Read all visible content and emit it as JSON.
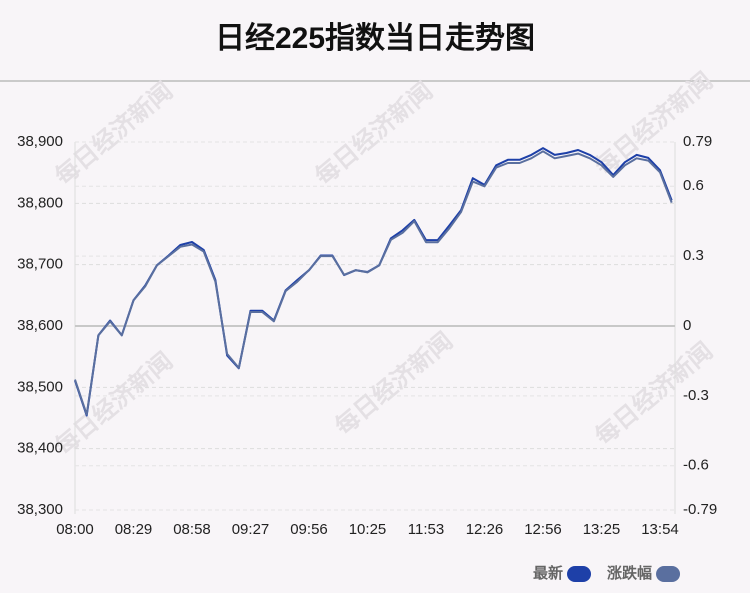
{
  "chart_data": {
    "type": "line",
    "title": "日经225指数当日走势图",
    "watermark": "每日经济新闻",
    "categories": [
      "08:00",
      null,
      null,
      null,
      null,
      "08:29",
      null,
      null,
      null,
      null,
      "08:58",
      null,
      null,
      null,
      null,
      "09:27",
      null,
      null,
      null,
      null,
      "09:56",
      null,
      null,
      null,
      null,
      "10:25",
      null,
      null,
      null,
      null,
      "11:53",
      null,
      null,
      null,
      null,
      "12:26",
      null,
      null,
      null,
      null,
      "12:56",
      null,
      null,
      null,
      null,
      "13:25",
      null,
      null,
      null,
      null,
      "13:54",
      null
    ],
    "series": [
      {
        "name": "最新",
        "color": "#1e40a8",
        "values": [
          38511,
          38454,
          38585,
          38609,
          38585,
          38642,
          38666,
          38699,
          38715,
          38732,
          38737,
          38724,
          38675,
          38552,
          38531,
          38625,
          38625,
          38609,
          38658,
          38675,
          38691,
          38715,
          38715,
          38683,
          38691,
          38688,
          38699,
          38743,
          38756,
          38773,
          38740,
          38740,
          38764,
          38789,
          38841,
          38830,
          38862,
          38871,
          38871,
          38879,
          38890,
          38879,
          38882,
          38887,
          38879,
          38867,
          38846,
          38867,
          38879,
          38874,
          38854,
          38805
        ]
      },
      {
        "name": "涨跌幅",
        "color": "#5a6f9f",
        "axis": "y2",
        "values": [
          -0.23,
          -0.38,
          -0.04,
          0.02,
          -0.04,
          0.11,
          0.17,
          0.26,
          0.3,
          0.34,
          0.35,
          0.32,
          0.19,
          -0.12,
          -0.18,
          0.06,
          0.06,
          0.02,
          0.15,
          0.19,
          0.24,
          0.3,
          0.3,
          0.22,
          0.24,
          0.23,
          0.26,
          0.37,
          0.4,
          0.45,
          0.36,
          0.36,
          0.42,
          0.49,
          0.62,
          0.6,
          0.68,
          0.7,
          0.7,
          0.72,
          0.75,
          0.72,
          0.73,
          0.74,
          0.72,
          0.69,
          0.64,
          0.69,
          0.72,
          0.71,
          0.66,
          0.53
        ]
      }
    ],
    "ylim": [
      38300,
      38900
    ],
    "yticks": [
      {
        "value": 38300,
        "label": "38,300"
      },
      {
        "value": 38400,
        "label": "38,400"
      },
      {
        "value": 38500,
        "label": "38,500"
      },
      {
        "value": 38600,
        "label": "38,600"
      },
      {
        "value": 38700,
        "label": "38,700"
      },
      {
        "value": 38800,
        "label": "38,800"
      },
      {
        "value": 38900,
        "label": "38,900"
      }
    ],
    "y2lim": [
      -0.79,
      0.79
    ],
    "y2ticks": [
      0.79,
      0.6,
      0.3,
      0,
      -0.3,
      -0.6,
      -0.79
    ],
    "grid": true,
    "legend": "bottom-right"
  }
}
